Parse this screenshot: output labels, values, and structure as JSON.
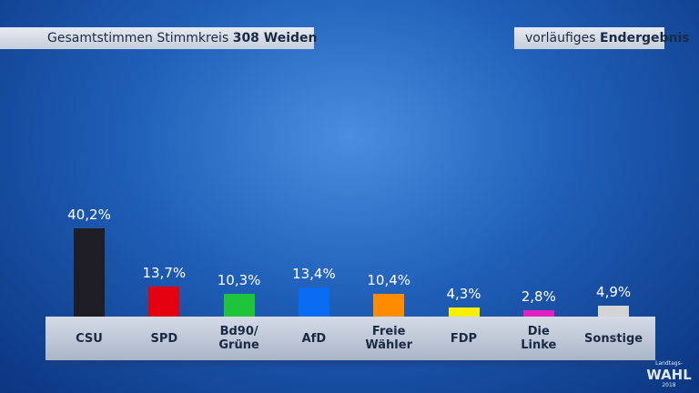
{
  "chart_data": {
    "type": "bar",
    "title": "Gesamtstimmen Stimmkreis",
    "title_bold": "308 Weiden",
    "status": "vorläufiges",
    "status_bold": "Endergebnis",
    "categories": [
      "CSU",
      "SPD",
      "Bd90/\nGrüne",
      "AfD",
      "Freie\nWähler",
      "FDP",
      "Die\nLinke",
      "Sonstige"
    ],
    "values": [
      40.2,
      13.7,
      10.3,
      13.4,
      10.4,
      4.3,
      2.8,
      4.9
    ],
    "value_labels": [
      "40,2%",
      "13,7%",
      "10,3%",
      "13,4%",
      "10,4%",
      "4,3%",
      "2,8%",
      "4,9%"
    ],
    "colors": [
      "#1e1e22",
      "#e3000f",
      "#1ec53a",
      "#0a6cf0",
      "#ff8c00",
      "#ffee00",
      "#e020c0",
      "#d4d4d4"
    ],
    "logo": [
      "Landtags-",
      "WAHL",
      "2018"
    ]
  }
}
